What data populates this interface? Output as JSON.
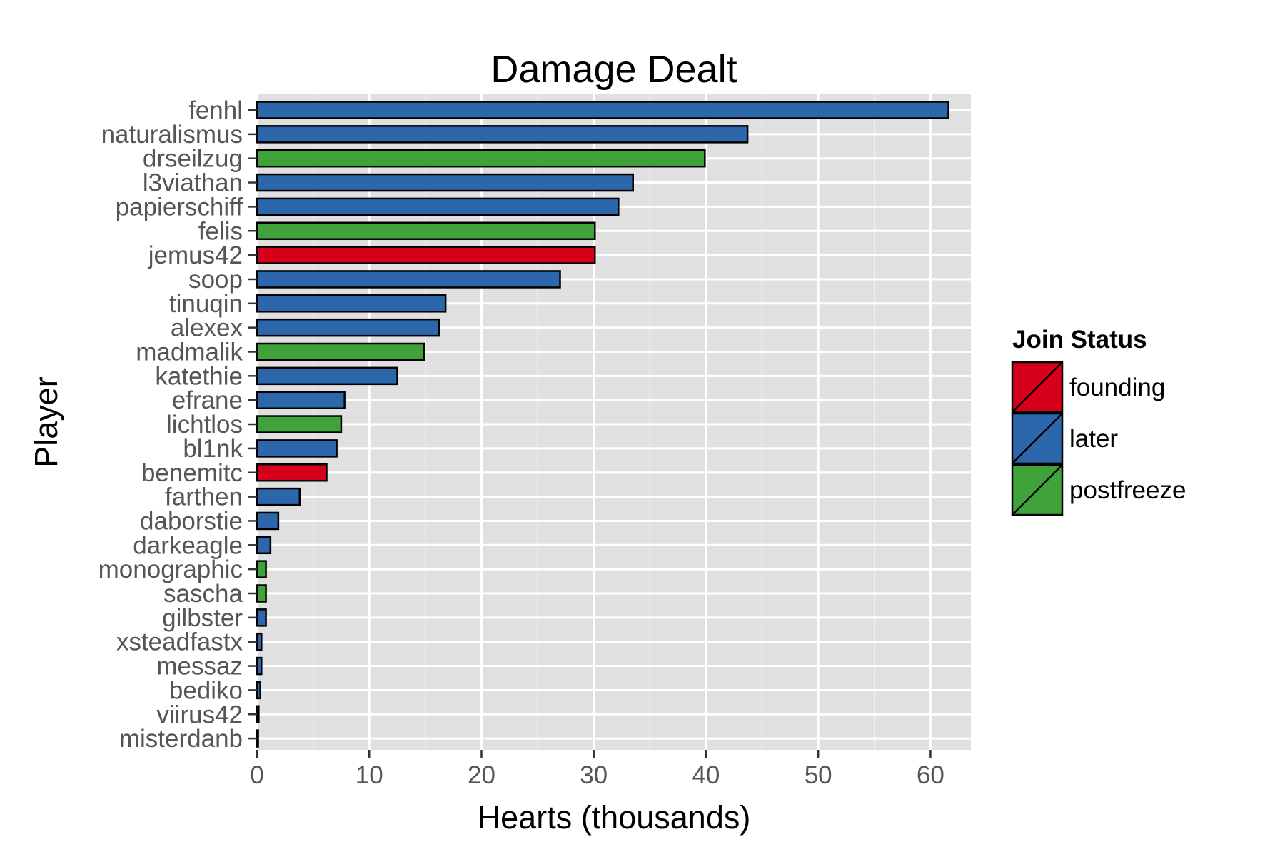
{
  "chart_data": {
    "type": "bar",
    "orientation": "horizontal",
    "title": "Damage Dealt",
    "xlabel": "Hearts (thousands)",
    "ylabel": "Player",
    "xlim": [
      0,
      63.6
    ],
    "xticks": [
      0,
      10,
      20,
      30,
      40,
      50,
      60
    ],
    "categories": [
      "fenhl",
      "naturalismus",
      "drseilzug",
      "l3viathan",
      "papierschiff",
      "felis",
      "jemus42",
      "soop",
      "tinuqin",
      "alexex",
      "madmalik",
      "katethie",
      "efrane",
      "lichtlos",
      "bl1nk",
      "benemitc",
      "farthen",
      "daborstie",
      "darkeagle",
      "monographic",
      "sascha",
      "gilbster",
      "xsteadfastx",
      "messaz",
      "bediko",
      "viirus42",
      "misterdanb"
    ],
    "values": [
      61.6,
      43.7,
      39.9,
      33.5,
      32.2,
      30.1,
      30.1,
      27.0,
      16.8,
      16.2,
      14.9,
      12.5,
      7.8,
      7.5,
      7.1,
      6.2,
      3.8,
      1.9,
      1.2,
      0.8,
      0.8,
      0.8,
      0.4,
      0.4,
      0.3,
      0.15,
      0.1
    ],
    "groups": [
      "later",
      "later",
      "postfreeze",
      "later",
      "later",
      "postfreeze",
      "founding",
      "later",
      "later",
      "later",
      "postfreeze",
      "later",
      "later",
      "postfreeze",
      "later",
      "founding",
      "later",
      "later",
      "later",
      "postfreeze",
      "postfreeze",
      "later",
      "later",
      "later",
      "later",
      "later",
      "later"
    ],
    "legend": {
      "title": "Join Status",
      "position": "right",
      "entries": [
        {
          "name": "founding",
          "color": "#d7001b"
        },
        {
          "name": "later",
          "color": "#2c66ab"
        },
        {
          "name": "postfreeze",
          "color": "#3fa33a"
        }
      ]
    },
    "grid": true,
    "panel_background": "#e0e0e0"
  }
}
